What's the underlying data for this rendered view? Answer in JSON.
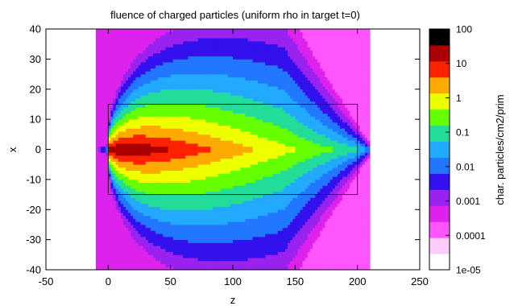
{
  "chart_data": {
    "type": "heatmap",
    "title": "fluence of charged particles (uniform rho in target t=0)",
    "xlabel": "z",
    "ylabel": "x",
    "colorbar_label": "char. particles/cm2/prim",
    "xlim": [
      -50,
      250
    ],
    "ylim": [
      -40,
      40
    ],
    "x_ticks": [
      "-50",
      "0",
      "50",
      "100",
      "150",
      "200",
      "250"
    ],
    "y_ticks": [
      "40",
      "30",
      "20",
      "10",
      "0",
      "-10",
      "-20",
      "-30",
      "-40"
    ],
    "colorbar": {
      "scale": "log",
      "range": [
        1e-05,
        100
      ],
      "tick_labels": [
        "100",
        "10",
        "1",
        "0.1",
        "0.01",
        "0.001",
        "0.0001",
        "1e-05"
      ],
      "colors": [
        "#ffffff",
        "#ffccff",
        "#ff55ff",
        "#dd22ee",
        "#9922ee",
        "#3311ee",
        "#2277ff",
        "#22aaff",
        "#22dd99",
        "#66ff00",
        "#eeff00",
        "#ffaa00",
        "#ff2200",
        "#aa0000",
        "#000000"
      ]
    },
    "data_extent": {
      "z": [
        -10,
        210
      ],
      "x": [
        -40,
        40
      ]
    },
    "target_box": {
      "z": [
        0,
        200
      ],
      "x": [
        -15,
        15
      ]
    },
    "beam_axis": {
      "x": 0,
      "peak_z": 20,
      "peak_value": 100
    }
  }
}
